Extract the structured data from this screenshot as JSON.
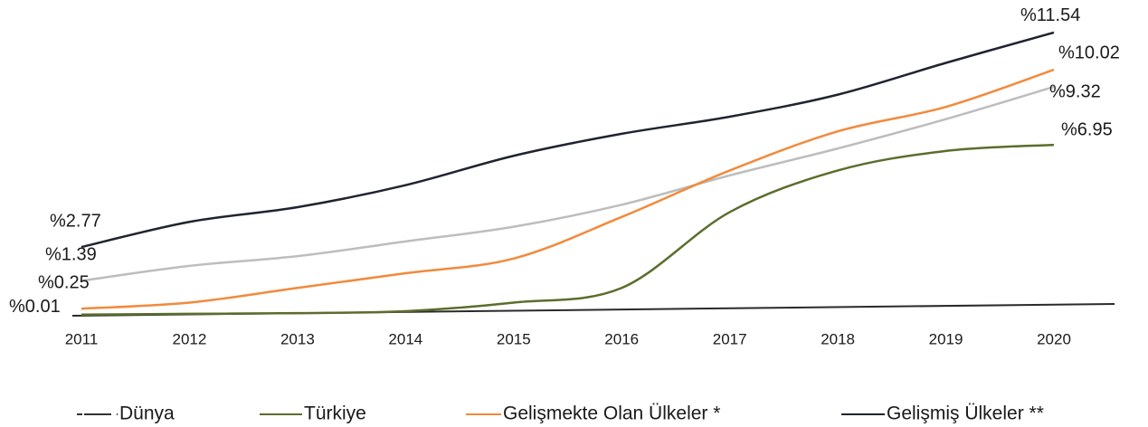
{
  "chart_data": {
    "type": "line",
    "categories": [
      "2011",
      "2012",
      "2013",
      "2014",
      "2015",
      "2016",
      "2017",
      "2018",
      "2019",
      "2020"
    ],
    "ylim": [
      0,
      12.5
    ],
    "series": [
      {
        "name": "Dünya",
        "color": "#bdbdbd",
        "values": [
          1.39,
          2.0,
          2.4,
          3.0,
          3.6,
          4.5,
          5.7,
          6.8,
          8.0,
          9.32
        ],
        "value_labels": [
          "%1.39",
          null,
          null,
          null,
          null,
          null,
          null,
          null,
          null,
          "%9.32"
        ]
      },
      {
        "name": "Türkiye",
        "color": "#5a6e2c",
        "values": [
          0.01,
          0.04,
          0.07,
          0.15,
          0.5,
          1.1,
          4.2,
          5.9,
          6.7,
          6.95
        ],
        "value_labels": [
          "%0.01",
          null,
          null,
          null,
          null,
          null,
          null,
          null,
          null,
          "%6.95"
        ]
      },
      {
        "name": "Gelişmekte Olan Ülkeler *",
        "color": "#f28a3c",
        "values": [
          0.25,
          0.5,
          1.1,
          1.7,
          2.3,
          4.0,
          5.9,
          7.5,
          8.5,
          10.02
        ],
        "value_labels": [
          "%0.25",
          null,
          null,
          null,
          null,
          null,
          null,
          null,
          null,
          "%10.02"
        ]
      },
      {
        "name": "Gelişmiş Ülkeler **",
        "color": "#1f2430",
        "values": [
          2.77,
          3.8,
          4.4,
          5.3,
          6.5,
          7.4,
          8.1,
          9.0,
          10.3,
          11.54
        ],
        "value_labels": [
          "%2.77",
          null,
          null,
          null,
          null,
          null,
          null,
          null,
          null,
          "%11.54"
        ]
      }
    ]
  }
}
